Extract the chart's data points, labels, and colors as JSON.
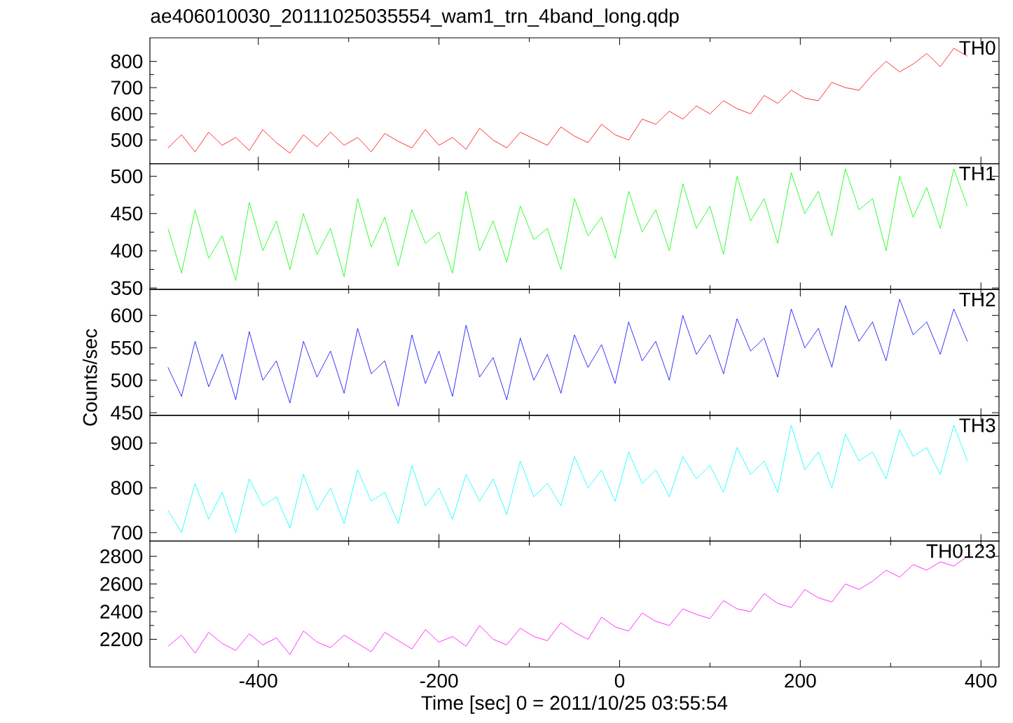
{
  "chart_data": [
    {
      "type": "line",
      "title": "ae406010030_20111025035554_wam1_trn_4band_long.qdp",
      "tick_labels": "y",
      "xlim": [
        -520,
        420
      ],
      "xticks": [
        -400,
        -200,
        0,
        200,
        400
      ],
      "ylim": [
        410,
        890
      ],
      "yticks": [
        500,
        600,
        700,
        800
      ],
      "x": [
        -500,
        -485,
        -470,
        -455,
        -440,
        -425,
        -410,
        -395,
        -380,
        -365,
        -350,
        -335,
        -320,
        -305,
        -290,
        -275,
        -260,
        -245,
        -230,
        -215,
        -200,
        -185,
        -170,
        -155,
        -140,
        -125,
        -110,
        -95,
        -80,
        -65,
        -50,
        -35,
        -20,
        -5,
        10,
        25,
        40,
        55,
        70,
        85,
        100,
        115,
        130,
        145,
        160,
        175,
        190,
        205,
        220,
        235,
        250,
        265,
        280,
        295,
        310,
        325,
        340,
        355,
        370,
        385
      ],
      "series": [
        {
          "name": "TH0",
          "color": "#ff0000",
          "values": [
            470,
            520,
            455,
            530,
            480,
            510,
            460,
            540,
            490,
            450,
            520,
            475,
            530,
            480,
            510,
            455,
            525,
            495,
            470,
            540,
            480,
            510,
            465,
            545,
            500,
            470,
            530,
            505,
            480,
            550,
            515,
            490,
            560,
            520,
            500,
            580,
            560,
            610,
            580,
            630,
            600,
            650,
            620,
            600,
            670,
            640,
            690,
            660,
            650,
            720,
            700,
            690,
            750,
            800,
            760,
            790,
            830,
            780,
            850,
            820
          ]
        }
      ]
    },
    {
      "type": "line",
      "tick_labels": "y",
      "xlim": [
        -520,
        420
      ],
      "xticks": [
        -400,
        -200,
        0,
        200,
        400
      ],
      "ylim": [
        348,
        517
      ],
      "yticks": [
        350,
        400,
        450,
        500
      ],
      "x": [
        -500,
        -485,
        -470,
        -455,
        -440,
        -425,
        -410,
        -395,
        -380,
        -365,
        -350,
        -335,
        -320,
        -305,
        -290,
        -275,
        -260,
        -245,
        -230,
        -215,
        -200,
        -185,
        -170,
        -155,
        -140,
        -125,
        -110,
        -95,
        -80,
        -65,
        -50,
        -35,
        -20,
        -5,
        10,
        25,
        40,
        55,
        70,
        85,
        100,
        115,
        130,
        145,
        160,
        175,
        190,
        205,
        220,
        235,
        250,
        265,
        280,
        295,
        310,
        325,
        340,
        355,
        370,
        385
      ],
      "series": [
        {
          "name": "TH1",
          "color": "#00ff00",
          "values": [
            430,
            370,
            455,
            390,
            420,
            360,
            465,
            400,
            440,
            375,
            450,
            395,
            430,
            365,
            470,
            405,
            445,
            380,
            455,
            410,
            425,
            370,
            480,
            400,
            440,
            385,
            460,
            415,
            430,
            375,
            470,
            420,
            445,
            390,
            480,
            425,
            455,
            400,
            490,
            430,
            460,
            395,
            500,
            440,
            470,
            410,
            505,
            450,
            480,
            420,
            510,
            455,
            470,
            400,
            500,
            445,
            485,
            430,
            510,
            460
          ]
        }
      ]
    },
    {
      "type": "line",
      "ylabel": "Counts/sec",
      "tick_labels": "y",
      "xlim": [
        -520,
        420
      ],
      "xticks": [
        -400,
        -200,
        0,
        200,
        400
      ],
      "ylim": [
        446,
        640
      ],
      "yticks": [
        450,
        500,
        550,
        600
      ],
      "x": [
        -500,
        -485,
        -470,
        -455,
        -440,
        -425,
        -410,
        -395,
        -380,
        -365,
        -350,
        -335,
        -320,
        -305,
        -290,
        -275,
        -260,
        -245,
        -230,
        -215,
        -200,
        -185,
        -170,
        -155,
        -140,
        -125,
        -110,
        -95,
        -80,
        -65,
        -50,
        -35,
        -20,
        -5,
        10,
        25,
        40,
        55,
        70,
        85,
        100,
        115,
        130,
        145,
        160,
        175,
        190,
        205,
        220,
        235,
        250,
        265,
        280,
        295,
        310,
        325,
        340,
        355,
        370,
        385
      ],
      "series": [
        {
          "name": "TH2",
          "color": "#0000ff",
          "values": [
            520,
            475,
            560,
            490,
            540,
            470,
            575,
            500,
            530,
            465,
            560,
            505,
            545,
            480,
            580,
            510,
            530,
            460,
            570,
            495,
            545,
            475,
            585,
            505,
            535,
            470,
            565,
            500,
            540,
            480,
            570,
            520,
            555,
            495,
            590,
            530,
            560,
            500,
            600,
            540,
            570,
            510,
            595,
            545,
            565,
            505,
            610,
            550,
            580,
            520,
            615,
            560,
            590,
            530,
            625,
            570,
            590,
            540,
            610,
            560
          ]
        }
      ]
    },
    {
      "type": "line",
      "tick_labels": "y",
      "xlim": [
        -520,
        420
      ],
      "xticks": [
        -400,
        -200,
        0,
        200,
        400
      ],
      "ylim": [
        681,
        962
      ],
      "yticks": [
        700,
        800,
        900
      ],
      "x": [
        -500,
        -485,
        -470,
        -455,
        -440,
        -425,
        -410,
        -395,
        -380,
        -365,
        -350,
        -335,
        -320,
        -305,
        -290,
        -275,
        -260,
        -245,
        -230,
        -215,
        -200,
        -185,
        -170,
        -155,
        -140,
        -125,
        -110,
        -95,
        -80,
        -65,
        -50,
        -35,
        -20,
        -5,
        10,
        25,
        40,
        55,
        70,
        85,
        100,
        115,
        130,
        145,
        160,
        175,
        190,
        205,
        220,
        235,
        250,
        265,
        280,
        295,
        310,
        325,
        340,
        355,
        370,
        385
      ],
      "series": [
        {
          "name": "TH3",
          "color": "#00ffff",
          "values": [
            750,
            700,
            810,
            730,
            790,
            700,
            820,
            760,
            780,
            710,
            830,
            750,
            800,
            720,
            840,
            770,
            790,
            720,
            850,
            760,
            800,
            730,
            830,
            770,
            820,
            740,
            860,
            780,
            810,
            760,
            870,
            800,
            840,
            770,
            880,
            810,
            840,
            780,
            870,
            820,
            850,
            790,
            890,
            830,
            860,
            790,
            940,
            840,
            880,
            800,
            920,
            860,
            880,
            820,
            930,
            870,
            890,
            830,
            940,
            860
          ]
        }
      ]
    },
    {
      "type": "line",
      "xlabel": "Time [sec] 0 = 2011/10/25 03:55:54",
      "xlim": [
        -520,
        420
      ],
      "xticks": [
        -400,
        -200,
        0,
        200,
        400
      ],
      "ylim": [
        2000,
        2910
      ],
      "yticks": [
        2200,
        2400,
        2600,
        2800
      ],
      "x": [
        -500,
        -485,
        -470,
        -455,
        -440,
        -425,
        -410,
        -395,
        -380,
        -365,
        -350,
        -335,
        -320,
        -305,
        -290,
        -275,
        -260,
        -245,
        -230,
        -215,
        -200,
        -185,
        -170,
        -155,
        -140,
        -125,
        -110,
        -95,
        -80,
        -65,
        -50,
        -35,
        -20,
        -5,
        10,
        25,
        40,
        55,
        70,
        85,
        100,
        115,
        130,
        145,
        160,
        175,
        190,
        205,
        220,
        235,
        250,
        265,
        280,
        295,
        310,
        325,
        340,
        355,
        370,
        385
      ],
      "series": [
        {
          "name": "TH0123",
          "color": "#ff00ff",
          "values": [
            2150,
            2230,
            2100,
            2250,
            2170,
            2120,
            2240,
            2160,
            2210,
            2090,
            2260,
            2180,
            2140,
            2230,
            2170,
            2110,
            2250,
            2190,
            2130,
            2270,
            2180,
            2220,
            2150,
            2300,
            2200,
            2160,
            2280,
            2220,
            2190,
            2320,
            2250,
            2200,
            2360,
            2290,
            2260,
            2390,
            2330,
            2300,
            2420,
            2380,
            2350,
            2480,
            2420,
            2400,
            2530,
            2460,
            2430,
            2560,
            2500,
            2470,
            2600,
            2560,
            2620,
            2700,
            2650,
            2740,
            2700,
            2760,
            2730,
            2800
          ]
        }
      ]
    }
  ]
}
